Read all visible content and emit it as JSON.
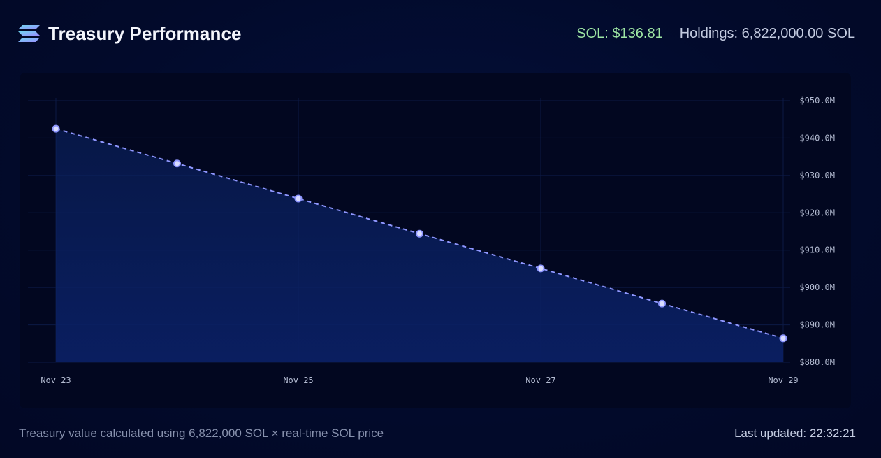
{
  "header": {
    "title": "Treasury Performance",
    "logo_icon": "solana-logo-icon",
    "sol_price": "SOL: $136.81",
    "holdings": "Holdings: 6,822,000.00 SOL"
  },
  "footer": {
    "note": "Treasury value calculated using 6,822,000 SOL × real-time SOL price",
    "last_updated": "Last updated: 22:32:21"
  },
  "colors": {
    "line": "#8f97ff",
    "fill_top": "#0b2466",
    "fill_bottom": "#0a1f63",
    "price_green": "#9ee6a4"
  },
  "chart_data": {
    "type": "area",
    "x": [
      "Nov 23",
      "Nov 24",
      "Nov 25",
      "Nov 26",
      "Nov 27",
      "Nov 28",
      "Nov 29"
    ],
    "xtick_labels": [
      "Nov 23",
      "Nov 25",
      "Nov 27",
      "Nov 29"
    ],
    "series": [
      {
        "name": "Treasury value",
        "values": [
          942.5,
          933.2,
          923.8,
          914.4,
          905.1,
          895.7,
          886.4
        ]
      }
    ],
    "ylim": [
      880,
      950
    ],
    "yticks": [
      880,
      890,
      900,
      910,
      920,
      930,
      940,
      950
    ],
    "ytick_labels": [
      "$880.0M",
      "$890.0M",
      "$900.0M",
      "$910.0M",
      "$920.0M",
      "$930.0M",
      "$940.0M",
      "$950.0M"
    ],
    "y_unit": "$M",
    "line_style": "dashed",
    "grid": true,
    "yaxis_side": "right",
    "title": "",
    "xlabel": "",
    "ylabel": ""
  }
}
